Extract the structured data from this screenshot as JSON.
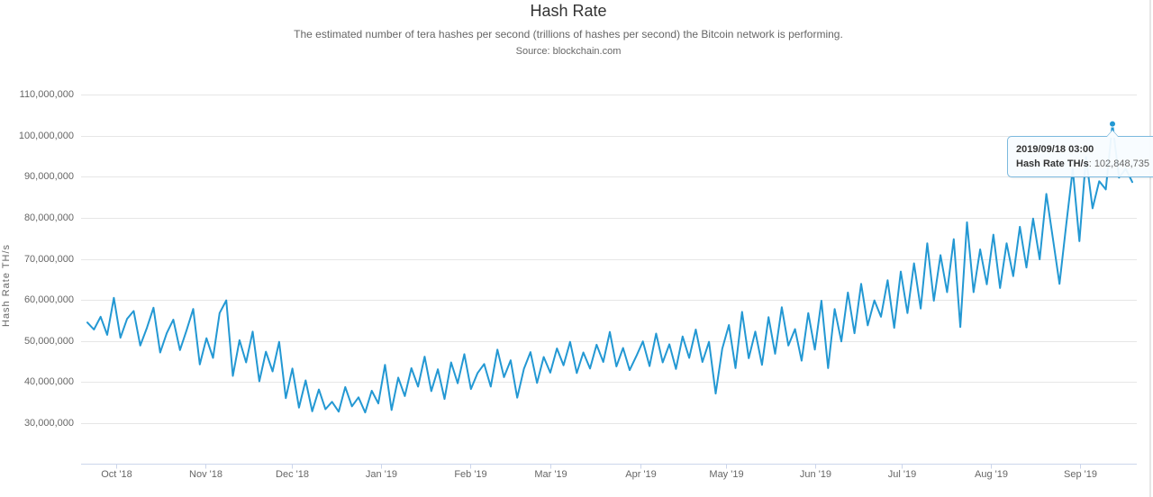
{
  "header": {
    "title": "Hash Rate",
    "subtitle": "The estimated number of tera hashes per second (trillions of hashes per second) the Bitcoin network is performing.",
    "source": "Source: blockchain.com"
  },
  "colors": {
    "line": "#2398d3",
    "grid": "#e6e6e6",
    "axis": "#ccd6eb",
    "text": "#666666",
    "title_text": "#333333",
    "tooltip_border": "#7cb9de"
  },
  "tooltip": {
    "header": "2019/09/18 03:00",
    "label": "Hash Rate TH/s",
    "separator": ": ",
    "value": "102,848,735"
  },
  "chart_data": {
    "type": "line",
    "title": "Hash Rate",
    "subtitle": "The estimated number of tera hashes per second (trillions of hashes per second) the Bitcoin network is performing.",
    "source": "Source: blockchain.com",
    "xlabel": "",
    "ylabel": "Hash Rate TH/s",
    "legend": "none",
    "grid": "horizontal",
    "x_range": [
      "2018-09-21",
      "2019-09-19"
    ],
    "x_ticks": [
      {
        "label": "Oct '18",
        "day": 10
      },
      {
        "label": "Nov '18",
        "day": 41
      },
      {
        "label": "Dec '18",
        "day": 71
      },
      {
        "label": "Jan '19",
        "day": 102
      },
      {
        "label": "Feb '19",
        "day": 133
      },
      {
        "label": "Mar '19",
        "day": 161
      },
      {
        "label": "Apr '19",
        "day": 192
      },
      {
        "label": "May '19",
        "day": 222
      },
      {
        "label": "Jun '19",
        "day": 253
      },
      {
        "label": "Jul '19",
        "day": 283
      },
      {
        "label": "Aug '19",
        "day": 314
      },
      {
        "label": "Sep '19",
        "day": 345
      }
    ],
    "y_ticks": [
      {
        "label": "30,000,000",
        "value_m": 30
      },
      {
        "label": "40,000,000",
        "value_m": 40
      },
      {
        "label": "50,000,000",
        "value_m": 50
      },
      {
        "label": "60,000,000",
        "value_m": 60
      },
      {
        "label": "70,000,000",
        "value_m": 70
      },
      {
        "label": "80,000,000",
        "value_m": 80
      },
      {
        "label": "90,000,000",
        "value_m": 90
      },
      {
        "label": "100,000,000",
        "value_m": 100
      },
      {
        "label": "110,000,000",
        "value_m": 110
      }
    ],
    "ylim_millions": [
      20,
      110
    ],
    "unit": "TH/s",
    "unit_scale": 1000000,
    "series": [
      {
        "name": "Hash Rate TH/s",
        "color": "#2398d3",
        "highlight_point": {
          "date": "2019/09/18 03:00",
          "value": 102848735
        },
        "values_millions": [
          54.5,
          52.8,
          55.9,
          51.5,
          60.5,
          50.8,
          55.4,
          57.3,
          48.9,
          53.2,
          58.1,
          47.2,
          51.9,
          55.2,
          47.8,
          52.6,
          57.8,
          44.3,
          50.7,
          45.9,
          56.8,
          59.9,
          41.5,
          50.2,
          44.8,
          52.3,
          40.2,
          47.4,
          42.6,
          49.8,
          36.1,
          43.3,
          33.8,
          40.4,
          32.9,
          38.2,
          33.4,
          35.2,
          32.8,
          38.8,
          34.1,
          36.3,
          32.6,
          37.9,
          34.8,
          44.2,
          33.2,
          41.1,
          36.6,
          43.4,
          38.9,
          46.2,
          37.8,
          43.1,
          35.9,
          44.8,
          39.7,
          46.8,
          38.3,
          42.2,
          44.4,
          38.9,
          47.9,
          41.2,
          45.3,
          36.2,
          43.2,
          47.3,
          39.8,
          46.1,
          42.3,
          48.2,
          44.1,
          49.8,
          42.2,
          47.2,
          43.3,
          49.1,
          44.9,
          52.2,
          43.8,
          48.3,
          42.9,
          46.3,
          49.9,
          43.9,
          51.8,
          44.8,
          49.2,
          43.2,
          51.1,
          45.9,
          52.8,
          44.9,
          49.8,
          37.2,
          48.1,
          53.9,
          43.4,
          57.1,
          45.8,
          52.3,
          44.2,
          55.8,
          46.9,
          58.2,
          48.9,
          52.9,
          45.2,
          56.8,
          47.9,
          59.8,
          43.4,
          57.8,
          49.9,
          61.8,
          51.9,
          63.9,
          53.8,
          59.9,
          55.9,
          64.8,
          53.2,
          66.9,
          56.8,
          68.9,
          57.9,
          73.8,
          59.8,
          70.9,
          61.9,
          74.8,
          53.4,
          78.9,
          61.9,
          72.3,
          63.8,
          75.9,
          62.9,
          73.8,
          65.8,
          77.8,
          67.9,
          79.8,
          69.9,
          85.8,
          74.9,
          63.9,
          78.2,
          91.8,
          74.3,
          94.8,
          82.3,
          88.9,
          86.9,
          102.848735,
          89.8,
          91.9,
          88.7
        ]
      }
    ]
  }
}
